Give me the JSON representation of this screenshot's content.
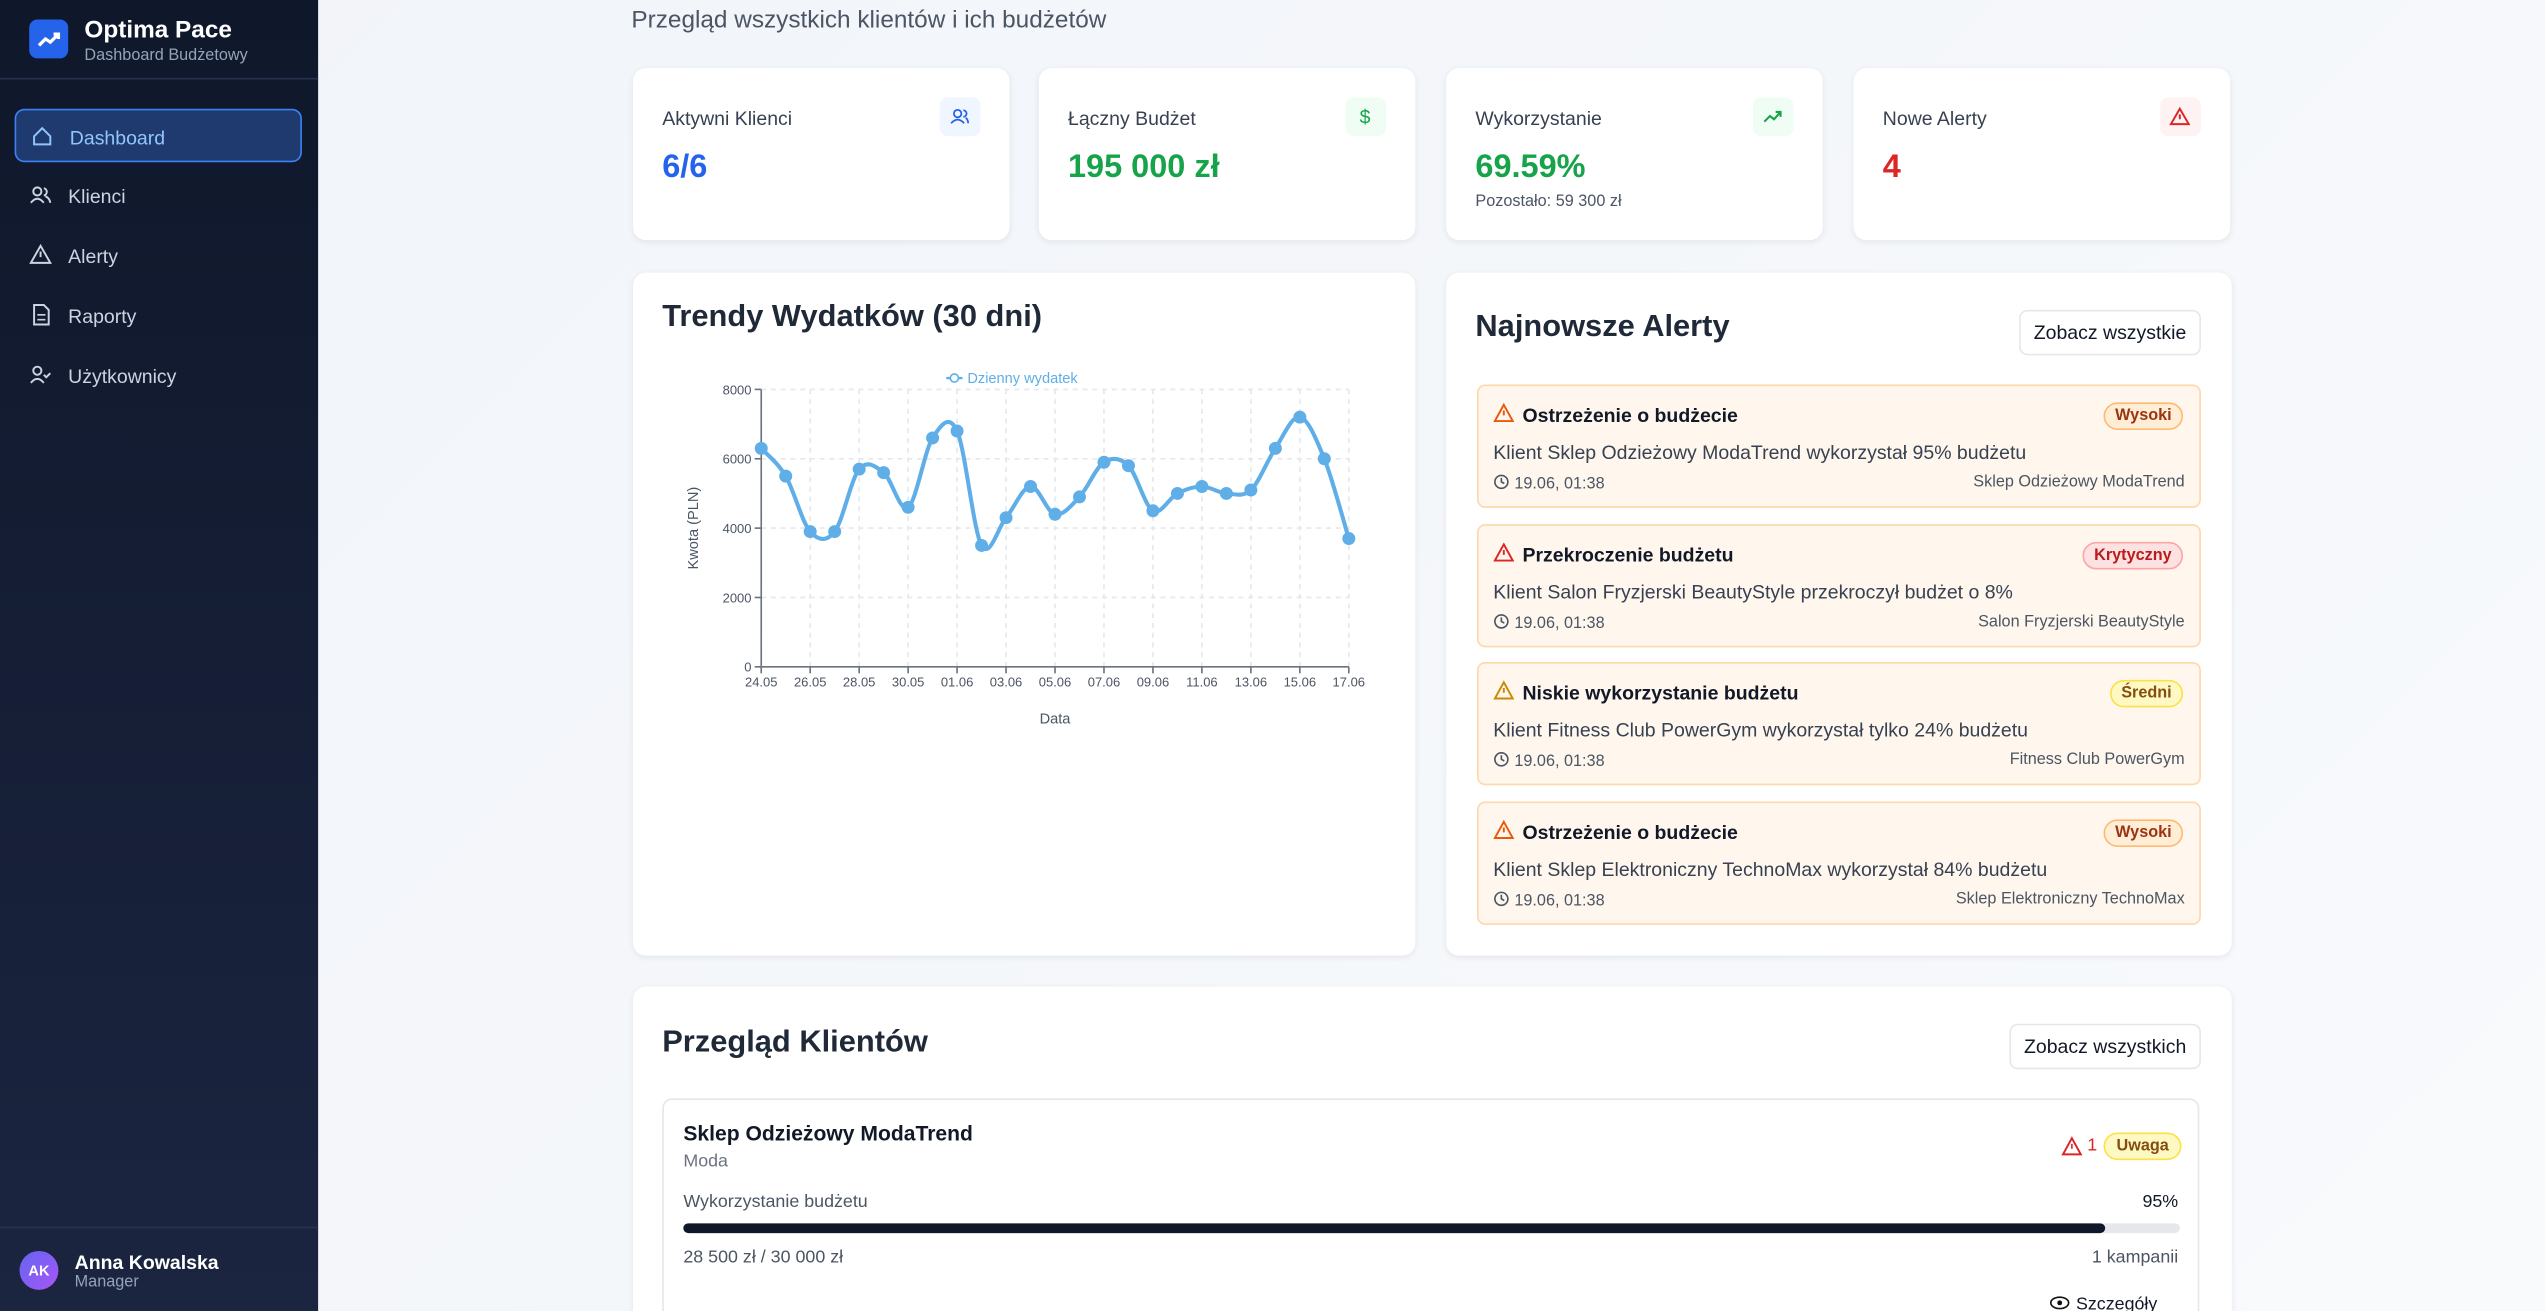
{
  "sidebar": {
    "brand": "Optima Pace",
    "brand_sub": "Dashboard Budżetowy",
    "nav": [
      "Dashboard",
      "Klienci",
      "Alerty",
      "Raporty",
      "Użytkownicy"
    ],
    "user": {
      "initials": "AK",
      "name": "Anna Kowalska",
      "role": "Manager"
    }
  },
  "header": {
    "subtitle": "Przegląd wszystkich klientów i ich budżetów"
  },
  "stats": [
    {
      "label": "Aktywni Klienci",
      "value": "6/6"
    },
    {
      "label": "Łączny Budżet",
      "value": "195 000 zł"
    },
    {
      "label": "Wykorzystanie",
      "value": "69.59%",
      "note": "Pozostało: 59 300 zł"
    },
    {
      "label": "Nowe Alerty",
      "value": "4"
    }
  ],
  "chart_title": "Trendy Wydatków (30 dni)",
  "chart_data": {
    "type": "line",
    "x_label": "Data",
    "y_label": "Kwota (PLN)",
    "categories": [
      "24.05",
      null,
      "26.05",
      null,
      "28.05",
      null,
      "30.05",
      null,
      "01.06",
      null,
      "03.06",
      null,
      "05.06",
      null,
      "07.06",
      null,
      "09.06",
      null,
      "11.06",
      null,
      "13.06",
      null,
      "15.06",
      null,
      "17.06"
    ],
    "series": [
      {
        "name": "Dzienny wydatek",
        "color": "#60aee8",
        "values": [
          6300,
          5500,
          3900,
          3900,
          5700,
          5600,
          4600,
          6600,
          6800,
          3500,
          4300,
          5200,
          4400,
          4900,
          5900,
          5800,
          4500,
          5000,
          5200,
          5000,
          5100,
          6300,
          7200,
          6000,
          3700
        ]
      }
    ],
    "ylim": [
      0,
      8000
    ],
    "yticks": [
      0,
      2000,
      4000,
      6000,
      8000
    ],
    "grid": true,
    "legend": "top"
  },
  "alerts": {
    "title": "Najnowsze Alerty",
    "button": "Zobacz wszystkie",
    "items": [
      {
        "title": "Ostrzeżenie o budżecie",
        "severity": "Wysoki",
        "message": "Klient Sklep Odzieżowy ModaTrend wykorzystał 95% budżetu",
        "time": "19.06, 01:38",
        "client": "Sklep Odzieżowy ModaTrend"
      },
      {
        "title": "Przekroczenie budżetu",
        "severity": "Krytyczny",
        "message": "Klient Salon Fryzjerski BeautyStyle przekroczył budżet o 8%",
        "time": "19.06, 01:38",
        "client": "Salon Fryzjerski BeautyStyle"
      },
      {
        "title": "Niskie wykorzystanie budżetu",
        "severity": "Średni",
        "message": "Klient Fitness Club PowerGym wykorzystał tylko 24% budżetu",
        "time": "19.06, 01:38",
        "client": "Fitness Club PowerGym"
      },
      {
        "title": "Ostrzeżenie o budżecie",
        "severity": "Wysoki",
        "message": "Klient Sklep Elektroniczny TechnoMax wykorzystał 84% budżetu",
        "time": "19.06, 01:38",
        "client": "Sklep Elektroniczny TechnoMax"
      }
    ]
  },
  "clients": {
    "title": "Przegląd Klientów",
    "button": "Zobacz wszystkich",
    "items": [
      {
        "name": "Sklep Odzieżowy ModaTrend",
        "industry": "Moda",
        "alert_count": "1",
        "status": "Uwaga",
        "usage_label": "Wykorzystanie budżetu",
        "usage": {
          "value": 95,
          "label": "95%"
        },
        "spent": "28 500 zł / 30 000 zł",
        "campaigns": "1 kampanii",
        "details": "Szczegóły"
      }
    ]
  }
}
